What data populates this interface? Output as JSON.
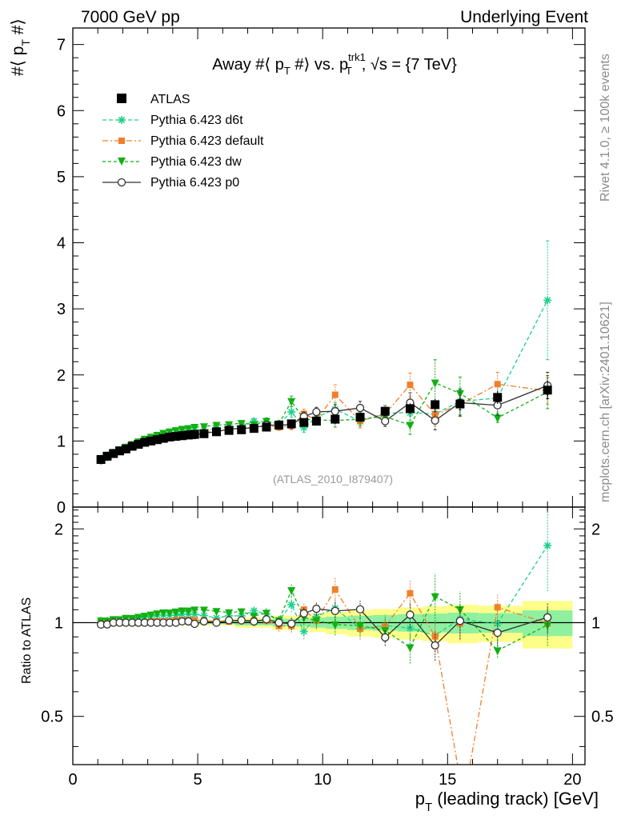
{
  "header": {
    "left": "7000 GeV pp",
    "right": "Underlying Event"
  },
  "side_labels": {
    "rivet": "Rivet 4.1.0, ≥ 100k events",
    "mcplots": "mcplots.cern.ch [arXiv:2401.10621]"
  },
  "chart_data": {
    "type": "line",
    "title": "Away #⟨ p_T #⟩ vs. p_T^trk1, √s = {7 TeV}",
    "title_parts": {
      "t1": "Away #⟨ p",
      "t2": "T",
      "t3": " #⟩ vs. p",
      "t4": "trk1",
      "t5": "T",
      "t6": ", √s = {7 TeV}"
    },
    "analysis_tag": "(ATLAS_2010_I879407)",
    "xlabel_parts": {
      "x1": "p",
      "x2": "T",
      "x3": " (leading track) [GeV]"
    },
    "ylabel_parts": {
      "y1": "#⟨ p",
      "y2": "T",
      "y3": " #⟩"
    },
    "ratio_ylabel": "Ratio to ATLAS",
    "xlim": [
      0,
      20.5
    ],
    "ylim": [
      0,
      7.25
    ],
    "ratio_ylim": [
      0.35,
      2.35
    ],
    "x_ticks": [
      "0",
      "5",
      "10",
      "15",
      "20"
    ],
    "y_ticks": [
      "0",
      "1",
      "2",
      "3",
      "4",
      "5",
      "6",
      "7"
    ],
    "ratio_ticks": [
      "0.5",
      "1",
      "2"
    ],
    "legend_position": "top-left",
    "legend": [
      "ATLAS",
      "Pythia 6.423 d6t",
      "Pythia 6.423 default",
      "Pythia 6.423 dw",
      "Pythia 6.423 p0"
    ],
    "x": [
      1.125,
      1.375,
      1.625,
      1.875,
      2.125,
      2.375,
      2.625,
      2.875,
      3.125,
      3.375,
      3.625,
      3.875,
      4.125,
      4.375,
      4.625,
      4.875,
      5.25,
      5.75,
      6.25,
      6.75,
      7.25,
      7.75,
      8.25,
      8.75,
      9.25,
      9.75,
      10.5,
      11.5,
      12.5,
      13.5,
      14.5,
      15.5,
      17,
      19
    ],
    "series": [
      {
        "name": "ATLAS",
        "color": "#000000",
        "values": [
          0.72,
          0.77,
          0.81,
          0.85,
          0.88,
          0.92,
          0.95,
          0.98,
          1.0,
          1.02,
          1.04,
          1.06,
          1.07,
          1.08,
          1.09,
          1.1,
          1.11,
          1.14,
          1.16,
          1.17,
          1.19,
          1.21,
          1.24,
          1.26,
          1.28,
          1.3,
          1.33,
          1.36,
          1.45,
          1.49,
          1.55,
          1.56,
          1.66,
          1.77
        ],
        "errors": [
          0.01,
          0.01,
          0.01,
          0.01,
          0.01,
          0.01,
          0.01,
          0.01,
          0.01,
          0.01,
          0.01,
          0.01,
          0.01,
          0.01,
          0.01,
          0.01,
          0.01,
          0.01,
          0.01,
          0.02,
          0.02,
          0.02,
          0.03,
          0.03,
          0.03,
          0.04,
          0.05,
          0.06,
          0.07,
          0.08,
          0.09,
          0.1,
          0.1,
          0.14
        ]
      },
      {
        "name": "Pythia 6.423 d6t",
        "color": "#1fd08c",
        "values": [
          0.73,
          0.78,
          0.82,
          0.86,
          0.9,
          0.94,
          0.98,
          1.02,
          1.05,
          1.08,
          1.1,
          1.12,
          1.13,
          1.15,
          1.16,
          1.17,
          1.17,
          1.18,
          1.22,
          1.23,
          1.3,
          1.29,
          1.26,
          1.44,
          1.2,
          1.36,
          1.48,
          1.3,
          1.42,
          1.43,
          1.41,
          1.6,
          1.65,
          3.13
        ],
        "errors": [
          0.01,
          0.01,
          0.01,
          0.01,
          0.01,
          0.01,
          0.01,
          0.01,
          0.01,
          0.01,
          0.01,
          0.01,
          0.01,
          0.01,
          0.02,
          0.02,
          0.02,
          0.02,
          0.03,
          0.03,
          0.04,
          0.05,
          0.05,
          0.08,
          0.07,
          0.08,
          0.1,
          0.1,
          0.12,
          0.12,
          0.16,
          0.2,
          0.25,
          0.9
        ]
      },
      {
        "name": "Pythia 6.423 default",
        "color": "#f07f2b",
        "values": [
          0.72,
          0.77,
          0.81,
          0.85,
          0.88,
          0.92,
          0.95,
          0.98,
          1.01,
          1.03,
          1.05,
          1.07,
          1.09,
          1.1,
          1.11,
          1.12,
          1.13,
          1.15,
          1.17,
          1.19,
          1.21,
          1.23,
          1.21,
          1.23,
          1.41,
          1.32,
          1.7,
          1.3,
          1.41,
          1.85,
          1.4,
          1.55,
          1.86,
          1.76
        ],
        "errors": [
          0.01,
          0.01,
          0.01,
          0.01,
          0.01,
          0.01,
          0.01,
          0.01,
          0.01,
          0.01,
          0.01,
          0.01,
          0.01,
          0.01,
          0.01,
          0.02,
          0.02,
          0.02,
          0.03,
          0.03,
          0.04,
          0.04,
          0.05,
          0.06,
          0.07,
          0.07,
          0.15,
          0.1,
          0.12,
          0.18,
          0.15,
          0.18,
          0.18,
          0.2
        ]
      },
      {
        "name": "Pythia 6.423 dw",
        "color": "#12b012",
        "values": [
          0.73,
          0.78,
          0.83,
          0.87,
          0.91,
          0.95,
          0.99,
          1.03,
          1.06,
          1.09,
          1.12,
          1.14,
          1.16,
          1.18,
          1.19,
          1.21,
          1.22,
          1.24,
          1.25,
          1.27,
          1.25,
          1.3,
          1.26,
          1.6,
          1.33,
          1.32,
          1.31,
          1.33,
          1.37,
          1.24,
          1.88,
          1.72,
          1.35,
          1.74
        ],
        "errors": [
          0.01,
          0.01,
          0.01,
          0.01,
          0.01,
          0.01,
          0.01,
          0.01,
          0.01,
          0.01,
          0.01,
          0.01,
          0.01,
          0.01,
          0.02,
          0.02,
          0.02,
          0.02,
          0.03,
          0.03,
          0.04,
          0.05,
          0.05,
          0.08,
          0.07,
          0.08,
          0.1,
          0.1,
          0.12,
          0.14,
          0.35,
          0.25,
          0.07,
          0.25
        ]
      },
      {
        "name": "Pythia 6.423 p0",
        "color": "#333333",
        "values": [
          0.71,
          0.76,
          0.81,
          0.85,
          0.88,
          0.92,
          0.95,
          0.98,
          1.0,
          1.02,
          1.04,
          1.06,
          1.07,
          1.09,
          1.1,
          1.09,
          1.12,
          1.14,
          1.18,
          1.19,
          1.2,
          1.24,
          1.24,
          1.25,
          1.37,
          1.44,
          1.45,
          1.5,
          1.3,
          1.58,
          1.31,
          1.58,
          1.54,
          1.84
        ],
        "errors": [
          0.01,
          0.01,
          0.01,
          0.01,
          0.01,
          0.01,
          0.01,
          0.01,
          0.01,
          0.01,
          0.01,
          0.01,
          0.01,
          0.01,
          0.01,
          0.02,
          0.02,
          0.02,
          0.03,
          0.03,
          0.04,
          0.04,
          0.05,
          0.06,
          0.07,
          0.07,
          0.1,
          0.1,
          0.08,
          0.15,
          0.14,
          0.2,
          0.15,
          0.2
        ]
      }
    ]
  }
}
